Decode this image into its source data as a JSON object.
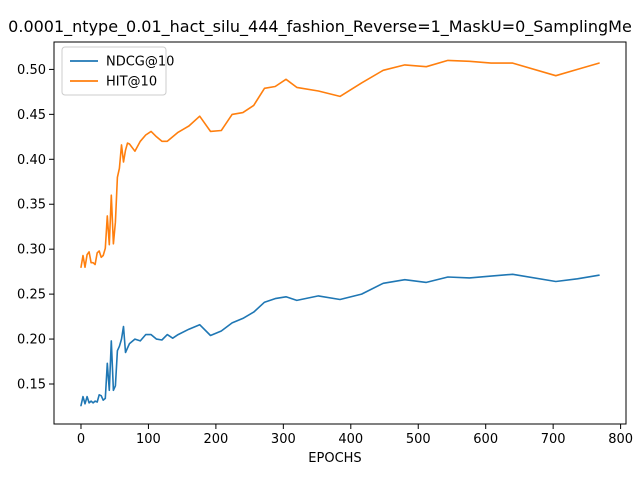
{
  "chart_data": {
    "type": "line",
    "title": "0.0001_ntype_0.01_hact_silu_444_fashion_Reverse=1_MaskU=0_SamplingMe",
    "xlabel": "EPOCHS",
    "ylabel": "",
    "xlim": [
      -40,
      808
    ],
    "ylim": [
      0.1055,
      0.5305
    ],
    "xticks": [
      0,
      100,
      200,
      300,
      400,
      500,
      600,
      700,
      800
    ],
    "yticks": [
      0.15,
      0.2,
      0.25,
      0.3,
      0.35,
      0.4,
      0.45,
      0.5
    ],
    "grid": false,
    "legend": "top-left",
    "series": [
      {
        "name": "NDCG@10",
        "color": "#1f77b4",
        "x": [
          0,
          3,
          6,
          9,
          12,
          15,
          18,
          21,
          24,
          27,
          30,
          33,
          36,
          39,
          42,
          45,
          48,
          51,
          54,
          57,
          60,
          63,
          66,
          69,
          72,
          80,
          88,
          96,
          104,
          112,
          120,
          128,
          136,
          144,
          160,
          176,
          192,
          208,
          224,
          240,
          256,
          272,
          288,
          304,
          320,
          352,
          384,
          416,
          448,
          480,
          512,
          544,
          576,
          608,
          640,
          704,
          736,
          768
        ],
        "y": [
          0.126,
          0.136,
          0.128,
          0.136,
          0.129,
          0.131,
          0.129,
          0.131,
          0.13,
          0.138,
          0.137,
          0.132,
          0.134,
          0.173,
          0.143,
          0.198,
          0.143,
          0.148,
          0.187,
          0.192,
          0.2,
          0.214,
          0.185,
          0.19,
          0.195,
          0.2,
          0.198,
          0.205,
          0.205,
          0.2,
          0.199,
          0.205,
          0.201,
          0.205,
          0.211,
          0.216,
          0.204,
          0.209,
          0.218,
          0.223,
          0.23,
          0.241,
          0.245,
          0.247,
          0.243,
          0.248,
          0.244,
          0.25,
          0.262,
          0.266,
          0.263,
          0.269,
          0.268,
          0.27,
          0.272,
          0.264,
          0.267,
          0.271
        ]
      },
      {
        "name": "HIT@10",
        "color": "#ff7f0e",
        "x": [
          0,
          3,
          6,
          9,
          12,
          15,
          18,
          21,
          24,
          27,
          30,
          33,
          36,
          39,
          42,
          45,
          48,
          51,
          54,
          57,
          60,
          63,
          66,
          69,
          72,
          80,
          88,
          96,
          104,
          112,
          120,
          128,
          136,
          144,
          160,
          176,
          192,
          208,
          224,
          240,
          256,
          272,
          288,
          304,
          320,
          352,
          384,
          416,
          448,
          480,
          512,
          544,
          576,
          608,
          640,
          704,
          736,
          768
        ],
        "y": [
          0.28,
          0.293,
          0.28,
          0.294,
          0.297,
          0.285,
          0.285,
          0.283,
          0.296,
          0.298,
          0.291,
          0.293,
          0.301,
          0.337,
          0.305,
          0.36,
          0.306,
          0.33,
          0.38,
          0.39,
          0.416,
          0.397,
          0.41,
          0.418,
          0.417,
          0.409,
          0.42,
          0.427,
          0.431,
          0.425,
          0.42,
          0.42,
          0.425,
          0.43,
          0.437,
          0.448,
          0.431,
          0.432,
          0.45,
          0.452,
          0.46,
          0.479,
          0.481,
          0.489,
          0.48,
          0.476,
          0.47,
          0.485,
          0.499,
          0.505,
          0.503,
          0.51,
          0.509,
          0.507,
          0.507,
          0.493,
          0.5,
          0.507
        ]
      }
    ]
  }
}
